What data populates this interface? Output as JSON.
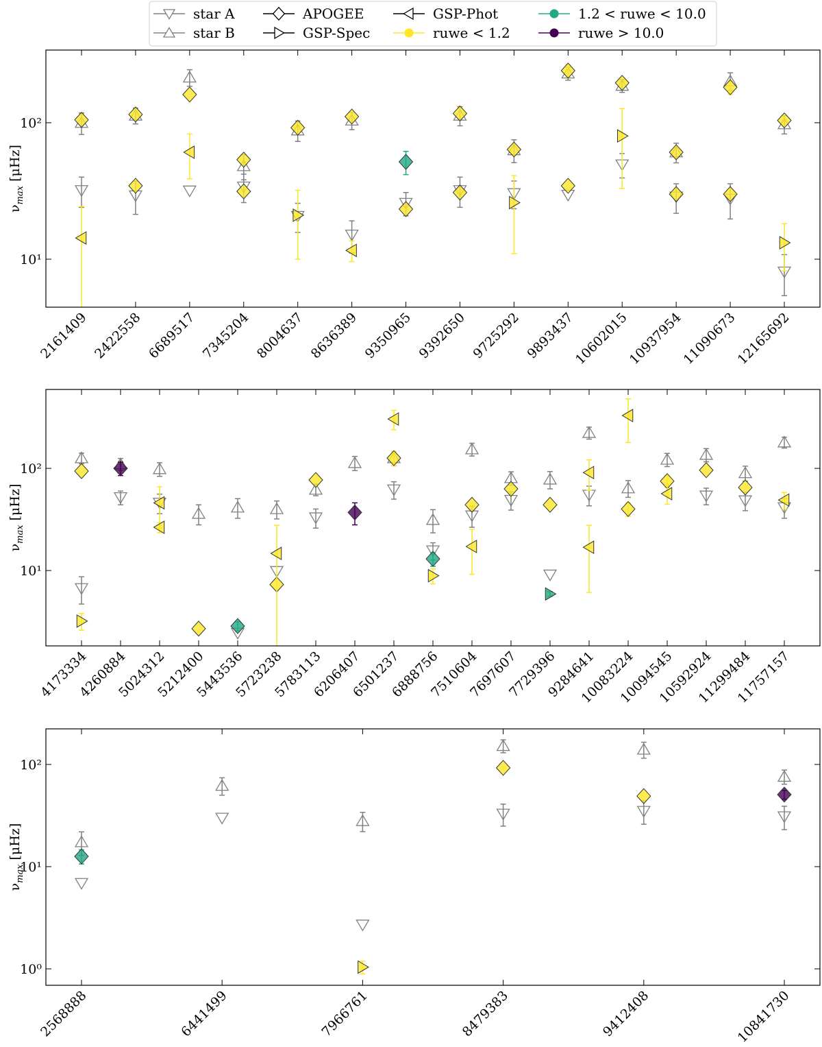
{
  "legend": [
    {
      "name": "star A",
      "marker": "down",
      "color": "#808080"
    },
    {
      "name": "star B",
      "marker": "up",
      "color": "#808080"
    },
    {
      "name": "APOGEE",
      "marker": "diamond",
      "color": "#000000"
    },
    {
      "name": "GSP-Spec",
      "marker": "right",
      "color": "#000000"
    },
    {
      "name": "GSP-Phot",
      "marker": "left",
      "color": "#000000"
    },
    {
      "name": "ruwe < 1.2",
      "marker": "circle",
      "color": "#fde725"
    },
    {
      "name": "1.2 < ruwe < 10.0",
      "marker": "circle",
      "color": "#22a884"
    },
    {
      "name": "ruwe > 10.0",
      "marker": "circle",
      "color": "#440154"
    }
  ],
  "chart_data": [
    {
      "type": "scatter",
      "log_y": true,
      "ylabel": {
        "symbol": "ν",
        "subscript": "max",
        "unit": " [μHz]"
      },
      "categories": [
        "2161409",
        "2422558",
        "6689517",
        "7345204",
        "8004637",
        "8636389",
        "9350965",
        "9392650",
        "9725292",
        "9893437",
        "10602015",
        "10937954",
        "11090673",
        "12165692"
      ],
      "ylim": [
        4.45,
        341
      ],
      "yticks": [
        {
          "value": 10,
          "label": "10¹"
        },
        {
          "value": 100,
          "label": "10²"
        }
      ],
      "series": [
        {
          "marker": "down",
          "color": "#808080",
          "values": [
            32,
            29.3,
            31.8,
            34,
            20.7,
            15.1,
            25.8,
            32,
            30.4,
            29.6,
            49.4,
            28.7,
            27.7,
            8.1
          ],
          "errors": [
            8,
            8,
            null,
            8,
            5,
            4,
            5,
            8,
            7,
            null,
            10,
            7,
            8,
            2.7
          ]
        },
        {
          "marker": "up",
          "color": "#808080",
          "values": [
            100,
            113,
            215,
            48.2,
            88,
            104,
            null,
            113,
            63,
            230,
            187,
            60.8,
            202,
            97.7
          ],
          "errors": [
            18,
            15,
            30,
            10,
            15,
            15,
            null,
            18,
            12,
            25,
            20,
            10,
            30,
            15
          ]
        },
        {
          "marker": "diamond",
          "values": [
            105,
            115,
            161,
            53.6,
            92,
            111,
            51.7,
            117,
            63.7,
            241,
            196,
            60.8,
            182,
            104
          ],
          "errors": [
            null,
            null,
            null,
            null,
            null,
            null,
            10,
            null,
            null,
            25,
            null,
            null,
            20,
            null
          ],
          "colors": [
            "#fde725",
            "#fde725",
            "#fde725",
            "#fde725",
            "#fde725",
            "#fde725",
            "#22a884",
            "#fde725",
            "#fde725",
            "#fde725",
            "#fde725",
            "#fde725",
            "#fde725",
            "#fde725"
          ]
        },
        {
          "marker": "diamond",
          "values": [
            null,
            34.5,
            null,
            31.4,
            null,
            null,
            23.3,
            30.8,
            null,
            34.5,
            null,
            30,
            30,
            null
          ],
          "errors": [
            null,
            null,
            null,
            null,
            null,
            null,
            null,
            null,
            null,
            null,
            null,
            null,
            null,
            null
          ],
          "colors": [
            null,
            "#fde725",
            null,
            "#fde725",
            null,
            null,
            "#fde725",
            "#fde725",
            null,
            "#fde725",
            null,
            "#fde725",
            "#fde725",
            null
          ]
        },
        {
          "marker": "right",
          "values": [
            null,
            null,
            null,
            null,
            21,
            null,
            null,
            null,
            26,
            null,
            80,
            null,
            null,
            13.2
          ],
          "errors": [
            null,
            null,
            null,
            null,
            11,
            null,
            null,
            null,
            15,
            null,
            47,
            null,
            null,
            5
          ],
          "colors": [
            null,
            null,
            null,
            null,
            "#fde725",
            null,
            null,
            null,
            "#fde725",
            null,
            "#fde725",
            null,
            null,
            "#fde725"
          ]
        },
        {
          "marker": "left",
          "values": [
            14.3,
            null,
            60.8,
            null,
            null,
            11.6,
            null,
            null,
            null,
            null,
            null,
            null,
            null,
            null
          ],
          "errors": [
            10,
            null,
            22,
            null,
            null,
            2,
            null,
            null,
            null,
            null,
            null,
            null,
            null,
            null
          ],
          "colors": [
            "#fde725",
            null,
            "#fde725",
            null,
            null,
            "#fde725",
            null,
            null,
            null,
            null,
            null,
            null,
            null,
            null
          ]
        }
      ]
    },
    {
      "type": "scatter",
      "log_y": true,
      "ylabel": {
        "symbol": "ν",
        "subscript": "max",
        "unit": " [μHz]"
      },
      "categories": [
        "4173334",
        "4260884",
        "5024312",
        "5212400",
        "5443536",
        "5723238",
        "5783113",
        "6206407",
        "6501237",
        "6888756",
        "7510604",
        "7697607",
        "7729396",
        "9284641",
        "10083224",
        "10094545",
        "10592924",
        "11299484",
        "11757157"
      ],
      "ylim": [
        1.83,
        592
      ],
      "yticks": [
        {
          "value": 10,
          "label": "10¹"
        },
        {
          "value": 100,
          "label": "10²"
        }
      ],
      "series": [
        {
          "marker": "down",
          "color": "#808080",
          "values": [
            6.7,
            52,
            46,
            null,
            2.45,
            9.85,
            33,
            null,
            62,
            15.7,
            34.5,
            49,
            9.1,
            55,
            null,
            null,
            54,
            48.5,
            41.5
          ],
          "errors": [
            2,
            8,
            10,
            null,
            null,
            null,
            7,
            null,
            12,
            3,
            8,
            10,
            null,
            12,
            null,
            null,
            10,
            10,
            9
          ]
        },
        {
          "marker": "up",
          "color": "#808080",
          "values": [
            126,
            110,
            98.5,
            36,
            41.5,
            40,
            62,
            113,
            126,
            31.4,
            154,
            80.5,
            78,
            223,
            64,
            122,
            136,
            90,
            180
          ],
          "errors": [
            15,
            15,
            15,
            8,
            9,
            8,
            8,
            18,
            20,
            8,
            22,
            12,
            15,
            30,
            12,
            18,
            20,
            15,
            22
          ]
        },
        {
          "marker": "diamond",
          "values": [
            94,
            100,
            null,
            null,
            null,
            null,
            77,
            null,
            126,
            null,
            44,
            63,
            44,
            null,
            null,
            75,
            96,
            65,
            null
          ],
          "errors": [
            null,
            15,
            null,
            null,
            null,
            null,
            null,
            null,
            20,
            null,
            null,
            null,
            null,
            null,
            null,
            10,
            null,
            null,
            null
          ],
          "colors": [
            "#fde725",
            "#440154",
            null,
            null,
            null,
            null,
            "#fde725",
            null,
            "#fde725",
            null,
            "#fde725",
            "#fde725",
            "#fde725",
            null,
            null,
            "#fde725",
            "#fde725",
            "#fde725",
            null
          ]
        },
        {
          "marker": "diamond",
          "values": [
            null,
            null,
            null,
            2.7,
            2.86,
            7.3,
            null,
            37,
            null,
            13,
            null,
            null,
            null,
            null,
            40,
            null,
            null,
            null,
            null
          ],
          "errors": [
            null,
            null,
            null,
            null,
            0.3,
            null,
            null,
            9,
            null,
            2,
            null,
            null,
            null,
            null,
            6,
            null,
            null,
            null,
            null
          ],
          "colors": [
            null,
            null,
            null,
            "#fde725",
            "#22a884",
            "#fde725",
            null,
            "#440154",
            null,
            "#22a884",
            null,
            null,
            null,
            null,
            "#fde725",
            null,
            null,
            null,
            null
          ]
        },
        {
          "marker": "right",
          "values": [
            3.2,
            null,
            null,
            null,
            null,
            null,
            null,
            null,
            null,
            8.9,
            null,
            null,
            5.9,
            null,
            null,
            null,
            null,
            null,
            null
          ],
          "errors": [
            0.6,
            null,
            null,
            null,
            null,
            null,
            null,
            null,
            null,
            1.5,
            null,
            null,
            0.3,
            null,
            null,
            null,
            null,
            null,
            null
          ],
          "colors": [
            "#fde725",
            null,
            null,
            null,
            null,
            null,
            null,
            null,
            null,
            "#fde725",
            null,
            null,
            "#22a884",
            null,
            null,
            null,
            null,
            null,
            null
          ]
        },
        {
          "marker": "left",
          "values": [
            null,
            null,
            46,
            null,
            null,
            14.7,
            null,
            null,
            304,
            null,
            17.2,
            null,
            null,
            91,
            329,
            56.5,
            null,
            null,
            49
          ],
          "errors": [
            null,
            null,
            20,
            null,
            null,
            13,
            null,
            null,
            65,
            null,
            8,
            null,
            null,
            30,
            150,
            12,
            null,
            null,
            9
          ],
          "colors": [
            null,
            null,
            "#fde725",
            null,
            null,
            "#fde725",
            null,
            null,
            "#fde725",
            null,
            "#fde725",
            null,
            null,
            "#fde725",
            "#fde725",
            "#fde725",
            null,
            null,
            "#fde725"
          ]
        },
        {
          "marker": "left",
          "values": [
            null,
            null,
            26.5,
            null,
            null,
            null,
            null,
            null,
            null,
            null,
            null,
            null,
            null,
            16.9,
            null,
            null,
            null,
            null,
            null
          ],
          "errors": [
            null,
            null,
            3,
            null,
            null,
            null,
            null,
            null,
            null,
            null,
            null,
            null,
            null,
            10.8,
            null,
            null,
            null,
            null,
            null
          ],
          "colors": [
            null,
            null,
            "#fde725",
            null,
            null,
            null,
            null,
            null,
            null,
            null,
            null,
            null,
            null,
            "#fde725",
            null,
            null,
            null,
            null,
            null
          ]
        }
      ]
    },
    {
      "type": "scatter",
      "log_y": true,
      "ylabel": {
        "symbol": "ν",
        "subscript": "max",
        "unit": " [μHz]"
      },
      "categories": [
        "2568888",
        "6441499",
        "7966761",
        "8479383",
        "9412408",
        "10841730"
      ],
      "ylim": [
        0.69,
        223
      ],
      "yticks": [
        {
          "value": 1,
          "label": "10⁰"
        },
        {
          "value": 10,
          "label": "10¹"
        },
        {
          "value": 100,
          "label": "10²"
        }
      ],
      "series": [
        {
          "marker": "down",
          "color": "#808080",
          "values": [
            6.9,
            30,
            2.7,
            32.9,
            35,
            31
          ],
          "errors": [
            null,
            null,
            null,
            8,
            9,
            8
          ]
        },
        {
          "marker": "up",
          "color": "#808080",
          "values": [
            17.4,
            62,
            28,
            152,
            140,
            76
          ],
          "errors": [
            4.5,
            12,
            6,
            22,
            25,
            12
          ]
        },
        {
          "marker": "diamond",
          "values": [
            12.6,
            null,
            null,
            92.6,
            49,
            50.7
          ],
          "errors": [
            2,
            null,
            null,
            null,
            null,
            5
          ],
          "colors": [
            "#22a884",
            null,
            null,
            "#fde725",
            "#fde725",
            "#440154"
          ]
        },
        {
          "marker": "right",
          "values": [
            null,
            null,
            1.04,
            null,
            null,
            null
          ],
          "errors": [
            null,
            null,
            0.15,
            null,
            null,
            null
          ],
          "colors": [
            null,
            null,
            "#fde725",
            null,
            null,
            null
          ]
        }
      ]
    }
  ]
}
